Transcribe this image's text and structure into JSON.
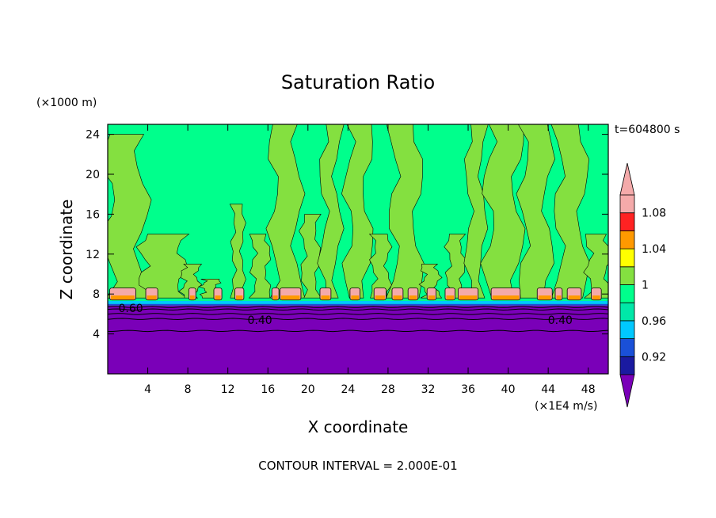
{
  "chart_data": {
    "type": "heatmap",
    "title": "Saturation Ratio",
    "xlabel": "X coordinate",
    "ylabel": "Z coordinate",
    "x_unit": "(×1E4 m/s)",
    "y_unit": "(×1000 m)",
    "time_label": "t=604800 s",
    "footer": "CONTOUR INTERVAL = 2.000E-01",
    "xlim": [
      0,
      50
    ],
    "ylim": [
      0,
      25
    ],
    "x_ticks": [
      4,
      8,
      12,
      16,
      20,
      24,
      28,
      32,
      36,
      40,
      44,
      48
    ],
    "y_ticks": [
      4,
      8,
      12,
      16,
      20,
      24
    ],
    "contour_labels": [
      {
        "text": "0.60",
        "x": 2.3,
        "y": 6.6
      },
      {
        "text": "0.40",
        "x": 15.2,
        "y": 5.4
      },
      {
        "text": "0.40",
        "x": 45.2,
        "y": 5.4
      }
    ],
    "colorbar": {
      "labels": [
        "1.08",
        "1.04",
        "1",
        "0.96",
        "0.92"
      ],
      "levels": [
        0.9,
        0.92,
        0.94,
        0.96,
        0.98,
        1.0,
        1.02,
        1.04,
        1.06,
        1.08,
        1.1
      ],
      "colors": [
        "#5a1a9a",
        "#1a1aa0",
        "#1a50d8",
        "#00c8ff",
        "#00e8a8",
        "#00ff8c",
        "#84e040",
        "#ffff00",
        "#ff9900",
        "#ff2222",
        "#f4aaaa"
      ],
      "under_color": "#7a00b8",
      "over_color": "#f4aaaa"
    },
    "field_colors": {
      "lower_layer": "#7a00b8",
      "saturated": "#00ff8c",
      "slightly_supersaturated": "#84e040",
      "peak": "#f4aaaa"
    }
  }
}
